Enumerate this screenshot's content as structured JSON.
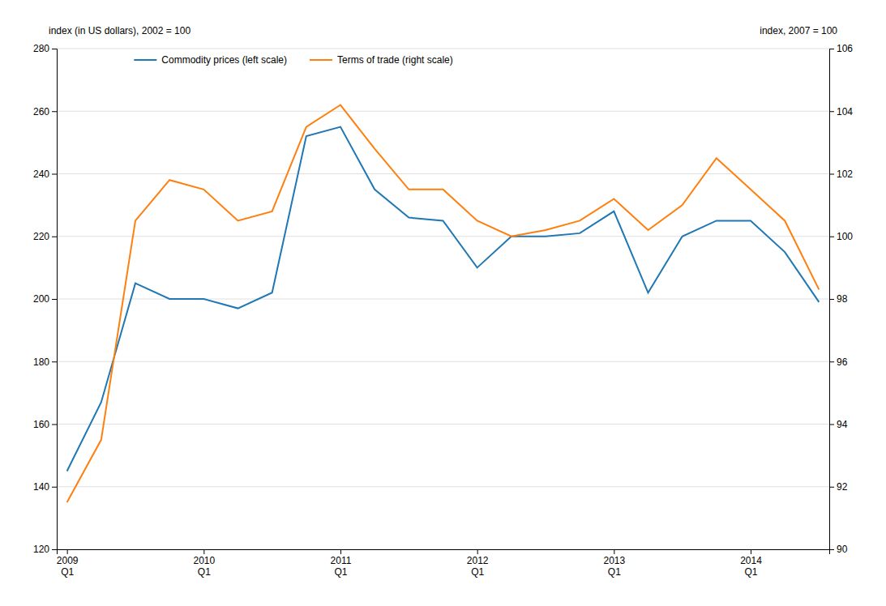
{
  "chart_data": {
    "type": "line",
    "ylabel": "index (in US dollars), 2002 = 100",
    "y2label": "index, 2007 = 100",
    "categories": [
      "2009\nQ1",
      null,
      null,
      null,
      "2010\nQ1",
      null,
      null,
      null,
      "2011\nQ1",
      null,
      null,
      null,
      "2012\nQ1",
      null,
      null,
      null,
      "2013\nQ1",
      null,
      null,
      null,
      "2014\nQ1",
      null,
      null
    ],
    "series": [
      {
        "name": "Commodity prices (left scale)",
        "values": [
          145,
          167,
          205,
          200,
          200,
          197,
          202,
          252,
          255,
          235,
          226,
          225,
          210,
          220,
          220,
          221,
          228,
          202,
          220,
          225,
          225,
          215,
          199
        ]
      },
      {
        "name": "Terms of trade (right scale)",
        "axis": "y2",
        "values": [
          91.5,
          93.5,
          100.5,
          101.8,
          101.5,
          100.5,
          100.8,
          103.5,
          104.2,
          102.8,
          101.5,
          101.5,
          100.5,
          100.0,
          100.2,
          100.5,
          101.2,
          100.2,
          101.0,
          102.5,
          101.5,
          100.5,
          98.3
        ]
      }
    ],
    "ylim": [
      120,
      280
    ],
    "yticks": [
      120,
      140,
      160,
      180,
      200,
      220,
      240,
      260,
      280
    ],
    "y2lim": [
      90,
      106
    ],
    "y2ticks": [
      90,
      92,
      94,
      96,
      98,
      100,
      102,
      104,
      106
    ],
    "grid": true,
    "legend": "upper left"
  }
}
